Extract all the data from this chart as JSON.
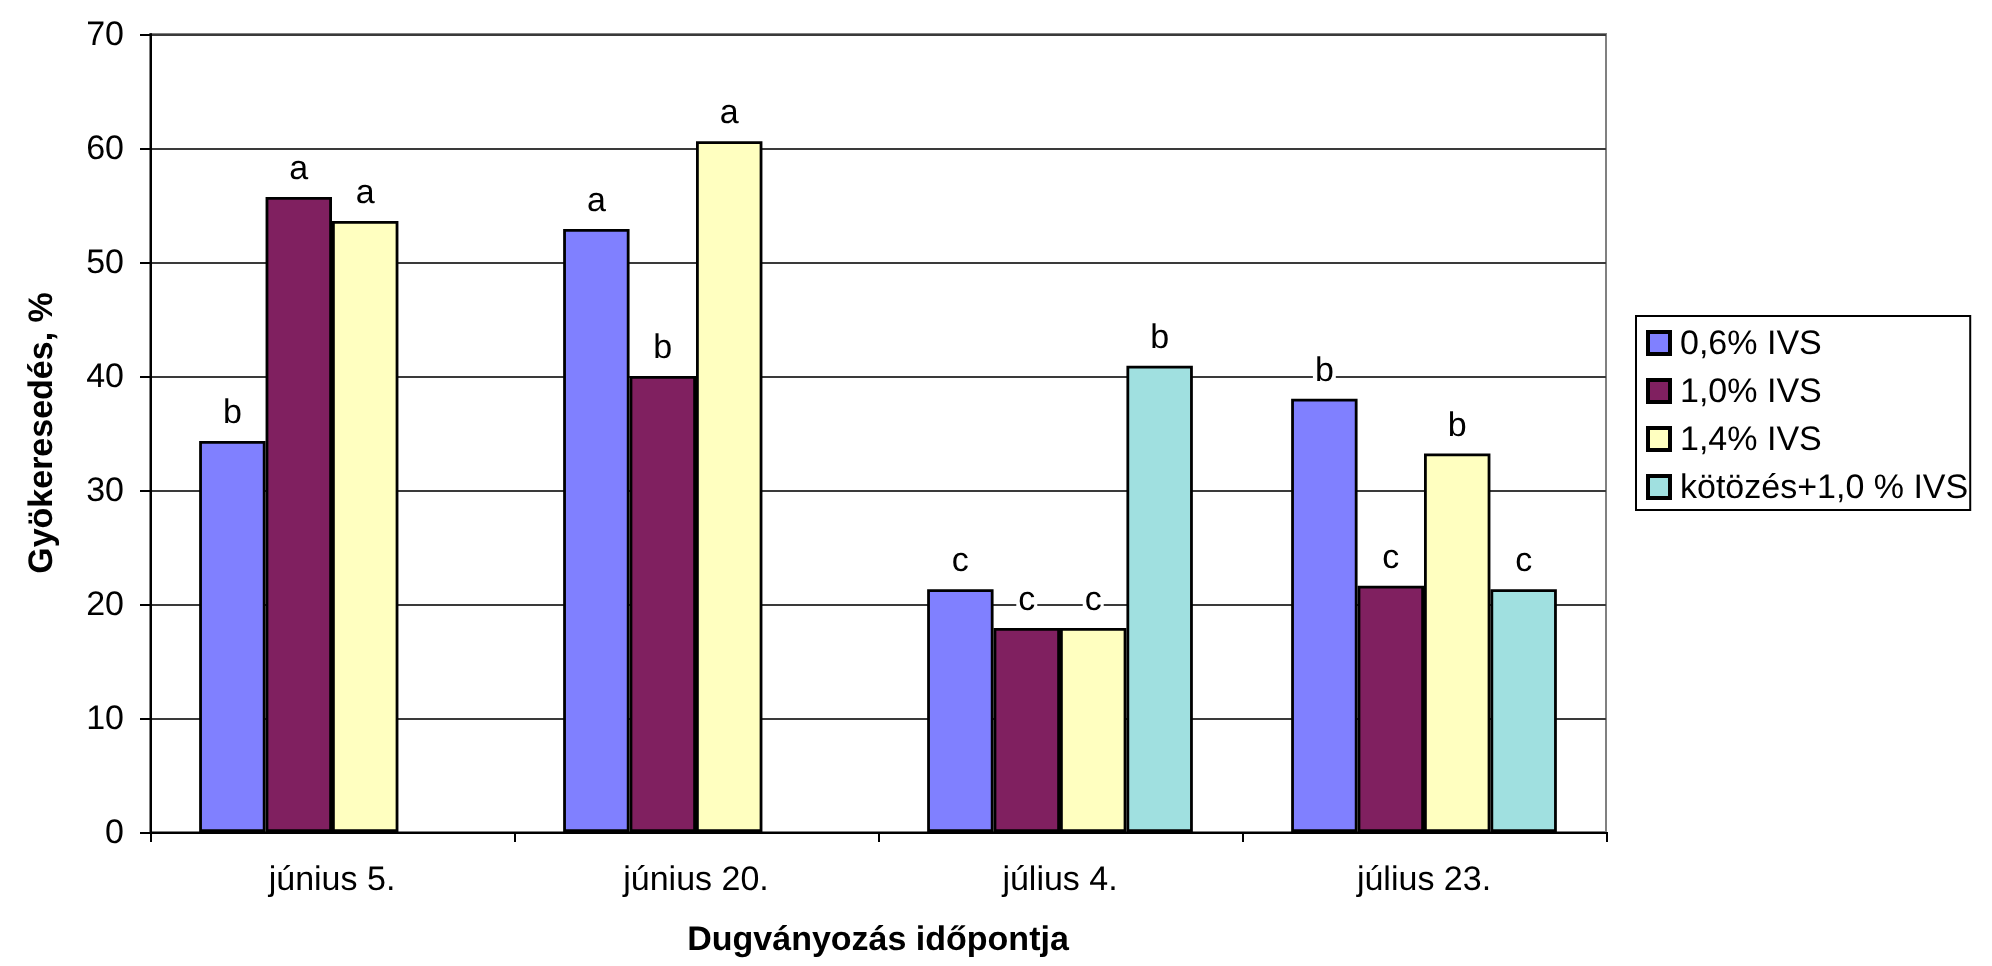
{
  "chart_data": {
    "type": "bar",
    "xlabel": "Dugványozás időpontja",
    "ylabel": "Gyökeresedés, %",
    "categories": [
      "június 5.",
      "június 20.",
      "július 4.",
      "július 23."
    ],
    "series": [
      {
        "name": "0,6% IVS",
        "color": "#8080ff",
        "values": [
          34.3,
          52.9,
          21.3,
          38.0
        ],
        "value_labels": [
          "b",
          "a",
          "c",
          "b"
        ]
      },
      {
        "name": "1,0% IVS",
        "color": "#802060",
        "values": [
          55.7,
          40.0,
          17.9,
          21.6
        ],
        "value_labels": [
          "a",
          "b",
          "c",
          "c"
        ]
      },
      {
        "name": "1,4% IVS",
        "color": "#ffffc0",
        "values": [
          53.6,
          60.6,
          17.9,
          33.2
        ],
        "value_labels": [
          "a",
          "a",
          "c",
          "b"
        ]
      },
      {
        "name": "kötözés+1,0 % IVS",
        "color": "#a0e0e0",
        "values": [
          null,
          null,
          40.9,
          21.3
        ],
        "value_labels": [
          null,
          null,
          "b",
          "c"
        ]
      }
    ],
    "ylim": [
      0,
      70
    ],
    "yticks": [
      0,
      10,
      20,
      30,
      40,
      50,
      60,
      70
    ],
    "grid": "y",
    "legend": "right"
  }
}
